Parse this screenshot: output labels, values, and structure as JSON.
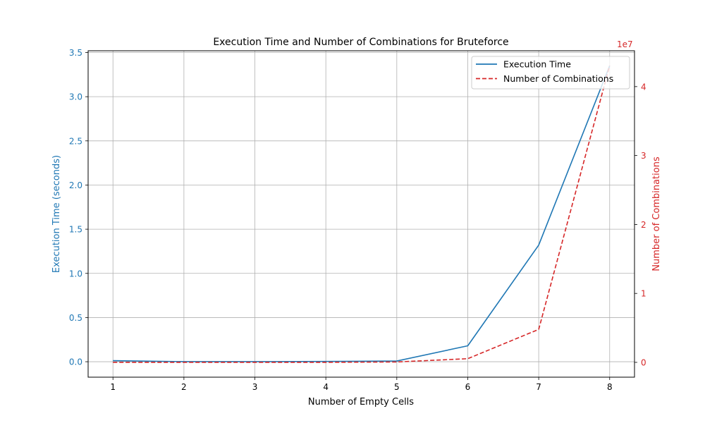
{
  "chart_data": {
    "type": "line",
    "title": "Execution Time and Number of Combinations for Bruteforce",
    "xlabel": "Number of Empty Cells",
    "x": [
      1,
      2,
      3,
      4,
      5,
      6,
      7,
      8
    ],
    "xlim": [
      0.65,
      8.35
    ],
    "xticks": [
      "1",
      "2",
      "3",
      "4",
      "5",
      "6",
      "7",
      "8"
    ],
    "grid": true,
    "legend_position": "top-right",
    "y_left": {
      "label": "Execution Time (seconds)",
      "color": "#1f77b4",
      "lim": [
        -0.175,
        3.52
      ],
      "ticks": [
        "0.0",
        "0.5",
        "1.0",
        "1.5",
        "2.0",
        "2.5",
        "3.0",
        "3.5"
      ],
      "tick_values": [
        0.0,
        0.5,
        1.0,
        1.5,
        2.0,
        2.5,
        3.0,
        3.5
      ]
    },
    "y_right": {
      "label": "Number of Combinations",
      "color": "#d62728",
      "lim": [
        -2150000,
        45200000
      ],
      "multiplier": "1e7",
      "ticks": [
        "0",
        "1",
        "2",
        "3",
        "4"
      ],
      "tick_values": [
        0,
        10000000,
        20000000,
        30000000,
        40000000
      ]
    },
    "series": [
      {
        "name": "Execution Time",
        "axis": "left",
        "color": "#1f77b4",
        "style": "solid",
        "values": [
          0.012,
          0.001,
          0.001,
          0.003,
          0.008,
          0.18,
          1.32,
          3.35
        ]
      },
      {
        "name": "Number of Combinations",
        "axis": "right",
        "color": "#d62728",
        "style": "dashed",
        "values": [
          9,
          81,
          729,
          6561,
          59049,
          531441,
          4782969,
          43046721
        ]
      }
    ]
  }
}
